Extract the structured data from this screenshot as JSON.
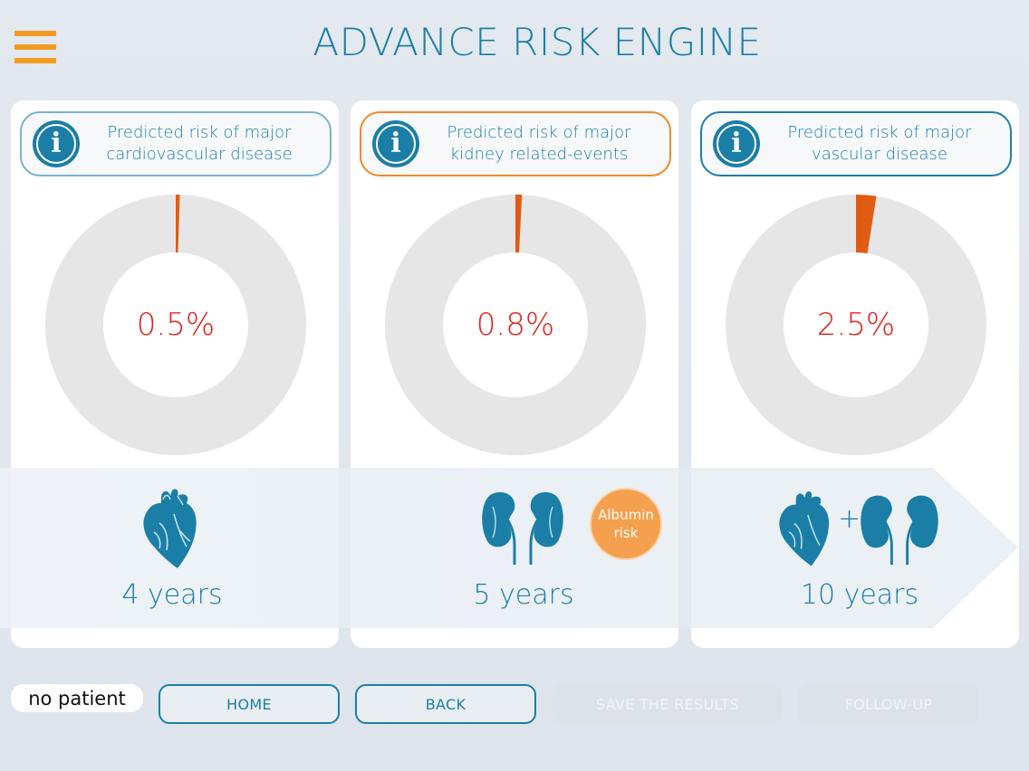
{
  "header": {
    "title": "ADVANCE RISK ENGINE",
    "menu_icon": "hamburger-menu-icon"
  },
  "colors": {
    "brand_blue": "#1b7ea6",
    "accent_orange": "#f29a1f",
    "risk_red": "#e0221b",
    "donut_track": "#e6e6e6"
  },
  "panels": [
    {
      "info": "Predicted risk of major\ncardiovascular disease",
      "value": "0.5%",
      "fraction": 0.005,
      "years": "4 years",
      "icon": "heart-icon"
    },
    {
      "info": "Predicted risk of major\nkidney related-events",
      "value": "0.8%",
      "fraction": 0.008,
      "years": "5 years",
      "icon": "kidneys-icon",
      "badge": "Albumin\nrisk"
    },
    {
      "info": "Predicted risk of major\nvascular disease",
      "value": "2.5%",
      "fraction": 0.025,
      "years": "10 years",
      "icon": "heart-plus-kidneys-icon",
      "plus": "+"
    }
  ],
  "footer": {
    "patient": "no patient",
    "home": "HOME",
    "back": "BACK",
    "save": "SAVE THE RESULTS",
    "follow_up": "FOLLOW-UP"
  }
}
